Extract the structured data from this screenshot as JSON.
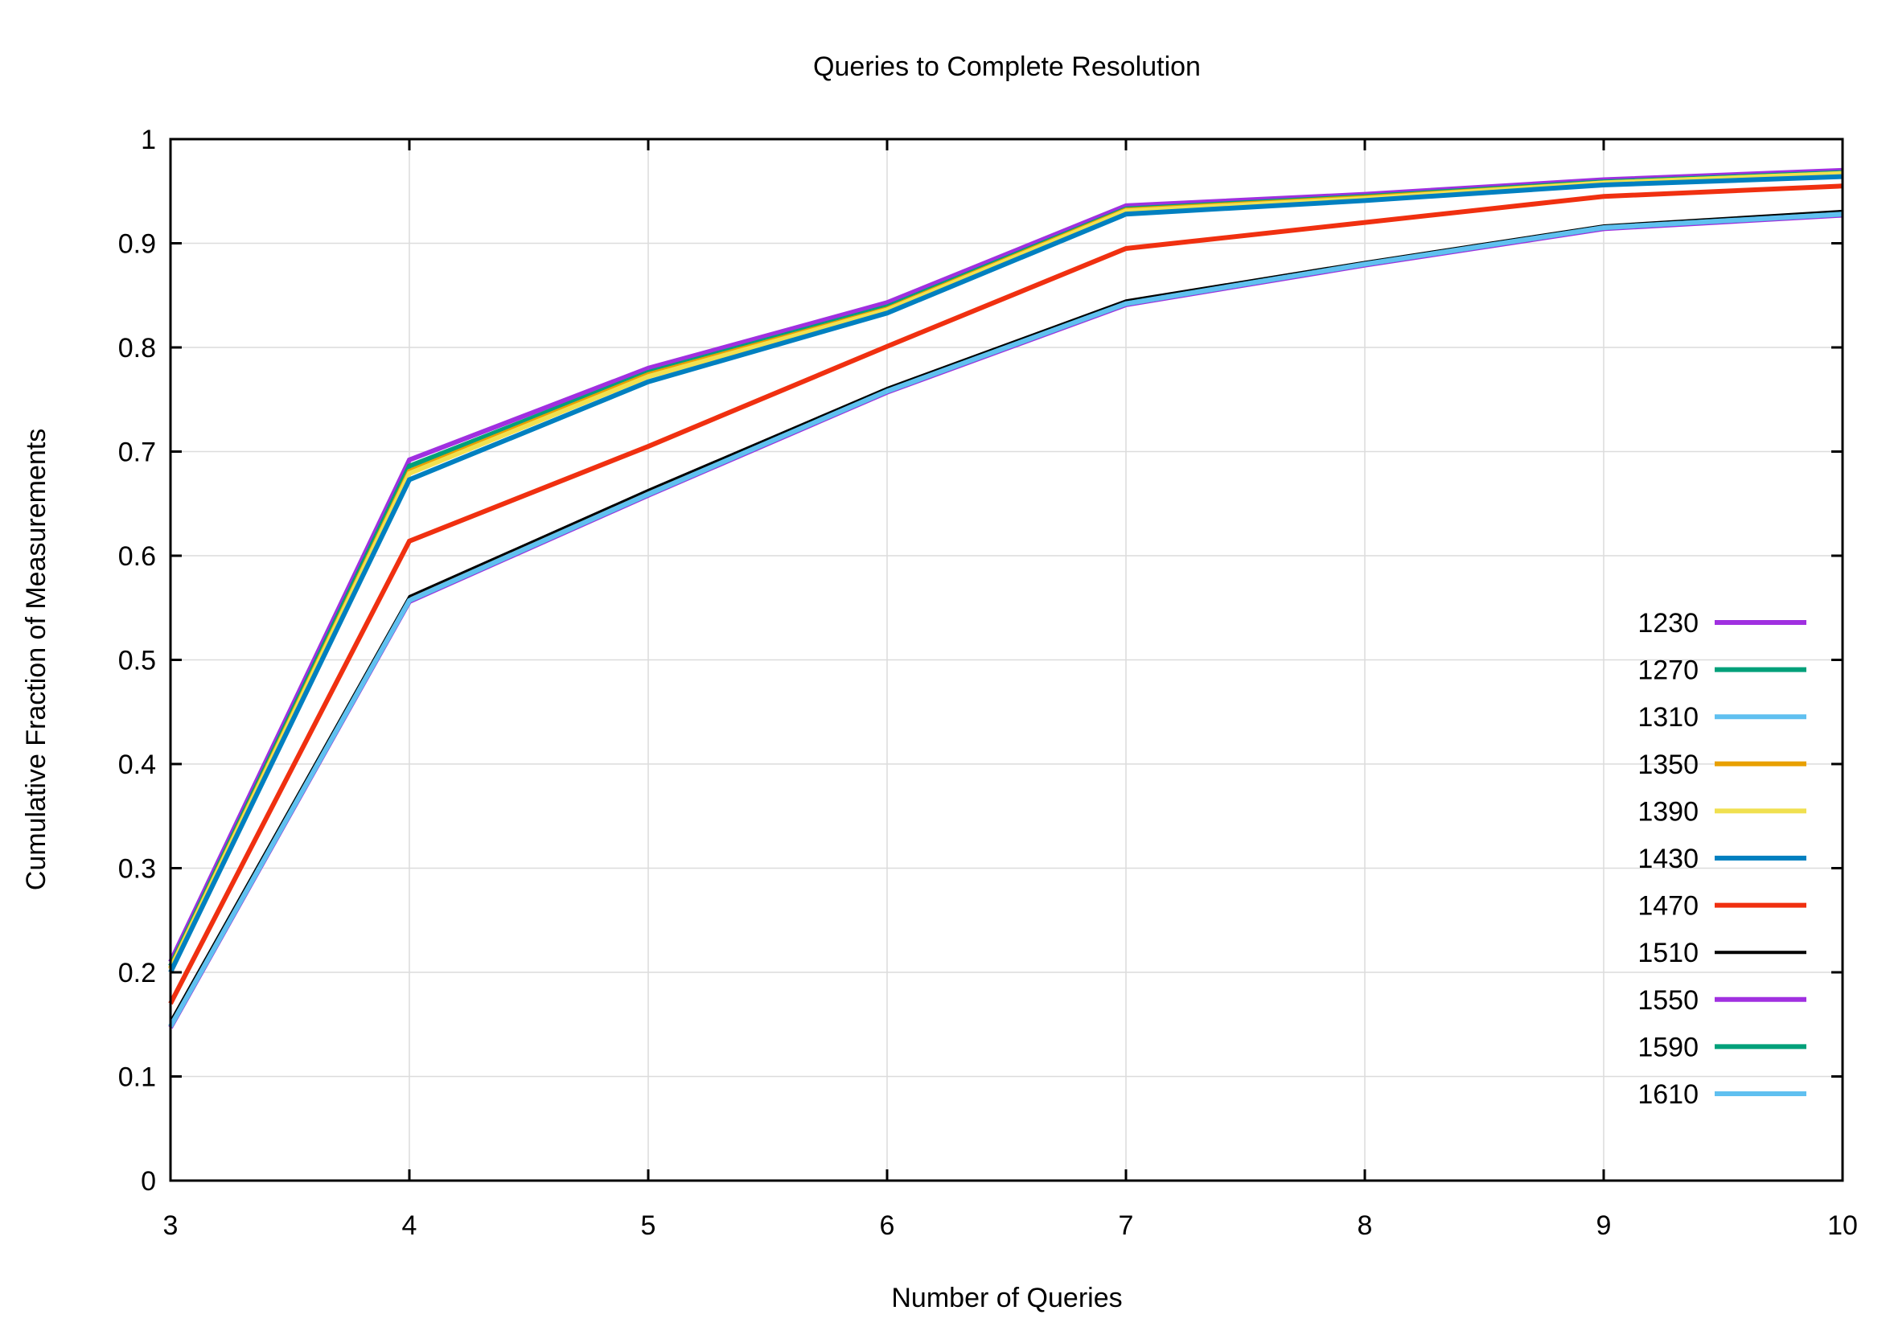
{
  "chart_data": {
    "type": "line",
    "title": "Queries to Complete Resolution",
    "xlabel": "Number of Queries",
    "ylabel": "Cumulative Fraction of Measurements",
    "xlim": [
      3,
      10
    ],
    "ylim": [
      0,
      1
    ],
    "grid": true,
    "legend_placement": "right",
    "x_ticks": [
      "3",
      "4",
      "5",
      "6",
      "7",
      "8",
      "9",
      "10"
    ],
    "y_ticks": [
      "0",
      "0.1",
      "0.2",
      "0.3",
      "0.4",
      "0.5",
      "0.6",
      "0.7",
      "0.8",
      "0.9",
      "1"
    ],
    "x": [
      3,
      4,
      5,
      6,
      7,
      8,
      9,
      10
    ],
    "series": [
      {
        "name": "1230",
        "color": "#a030e0",
        "values": [
          0.21,
          0.692,
          0.78,
          0.843,
          0.936,
          0.947,
          0.961,
          0.97
        ]
      },
      {
        "name": "1270",
        "color": "#00a07a",
        "values": [
          0.206,
          0.686,
          0.776,
          0.839,
          0.933,
          0.945,
          0.959,
          0.968
        ]
      },
      {
        "name": "1310",
        "color": "#60c0f0",
        "values": [
          0.148,
          0.557,
          0.659,
          0.758,
          0.842,
          0.88,
          0.915,
          0.928
        ]
      },
      {
        "name": "1350",
        "color": "#e8a000",
        "values": [
          0.204,
          0.681,
          0.774,
          0.837,
          0.932,
          0.944,
          0.958,
          0.967
        ]
      },
      {
        "name": "1390",
        "color": "#f0e050",
        "values": [
          0.203,
          0.679,
          0.772,
          0.836,
          0.931,
          0.943,
          0.958,
          0.967
        ]
      },
      {
        "name": "1430",
        "color": "#0080c0",
        "values": [
          0.2,
          0.673,
          0.767,
          0.833,
          0.928,
          0.941,
          0.956,
          0.964
        ]
      },
      {
        "name": "1470",
        "color": "#f03010",
        "values": [
          0.17,
          0.614,
          0.705,
          0.801,
          0.895,
          0.92,
          0.945,
          0.955
        ]
      },
      {
        "name": "1510",
        "color": "#000000",
        "values": [
          0.153,
          0.561,
          0.663,
          0.761,
          0.845,
          0.882,
          0.917,
          0.931
        ]
      },
      {
        "name": "1550",
        "color": "#a030e0",
        "values": [
          0.147,
          0.556,
          0.658,
          0.757,
          0.841,
          0.879,
          0.914,
          0.927
        ]
      },
      {
        "name": "1590",
        "color": "#00a07a",
        "values": [
          0.148,
          0.557,
          0.659,
          0.758,
          0.842,
          0.88,
          0.915,
          0.928
        ]
      },
      {
        "name": "1610",
        "color": "#60c0f0",
        "values": [
          0.148,
          0.557,
          0.659,
          0.758,
          0.842,
          0.88,
          0.915,
          0.928
        ]
      }
    ]
  }
}
